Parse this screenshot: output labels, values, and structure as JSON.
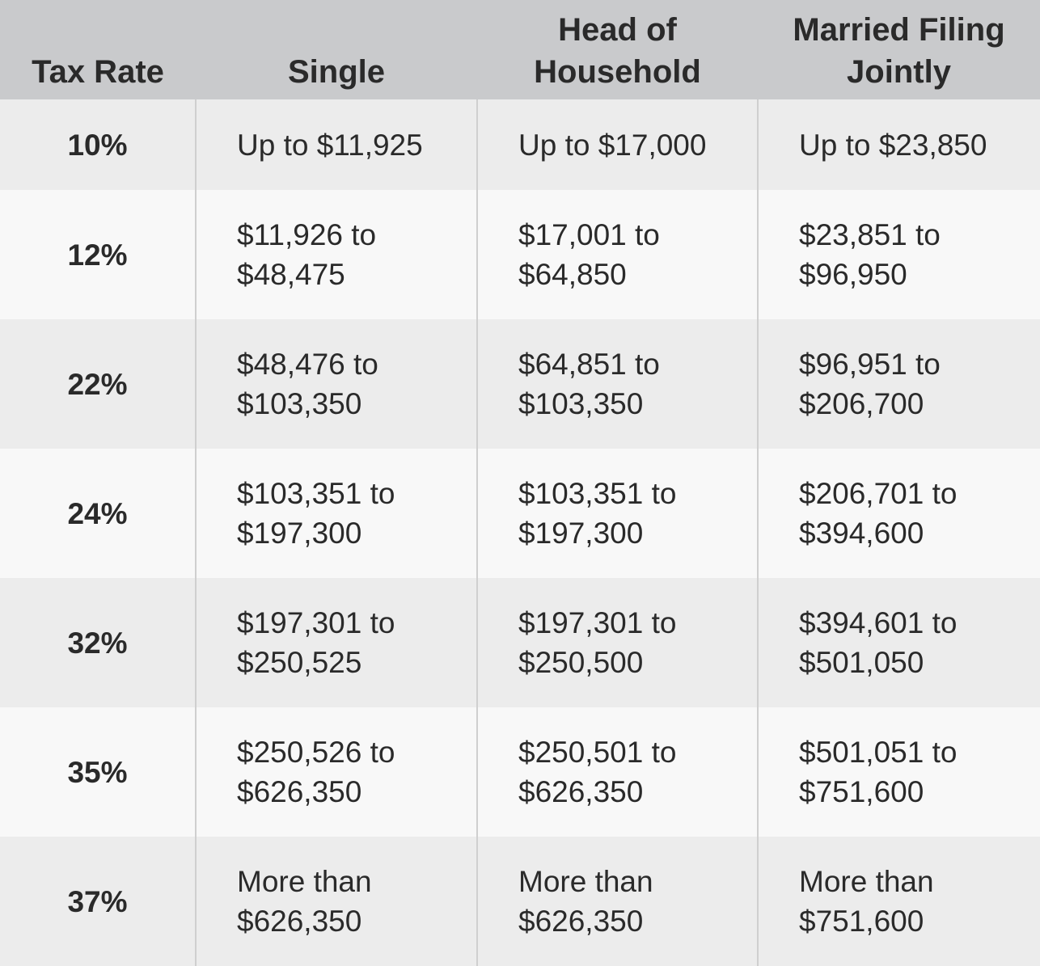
{
  "table": {
    "header": [
      "Tax Rate",
      "Single",
      "Head of Household",
      "Married Filing Jointly"
    ],
    "rows": [
      [
        "10%",
        "Up to $11,925",
        "Up to $17,000",
        "Up to $23,850"
      ],
      [
        "12%",
        "$11,926 to $48,475",
        "$17,001 to $64,850",
        "$23,851 to $96,950"
      ],
      [
        "22%",
        "$48,476 to $103,350",
        "$64,851 to $103,350",
        "$96,951 to $206,700"
      ],
      [
        "24%",
        "$103,351 to $197,300",
        "$103,351 to $197,300",
        "$206,701 to $394,600"
      ],
      [
        "32%",
        "$197,301 to $250,525",
        "$197,301 to $250,500",
        "$394,601 to $501,050"
      ],
      [
        "35%",
        "$250,526 to $626,350",
        "$250,501 to $626,350",
        "$501,051 to $751,600"
      ],
      [
        "37%",
        "More than $626,350",
        "More than $626,350",
        "More than $751,600"
      ]
    ]
  }
}
